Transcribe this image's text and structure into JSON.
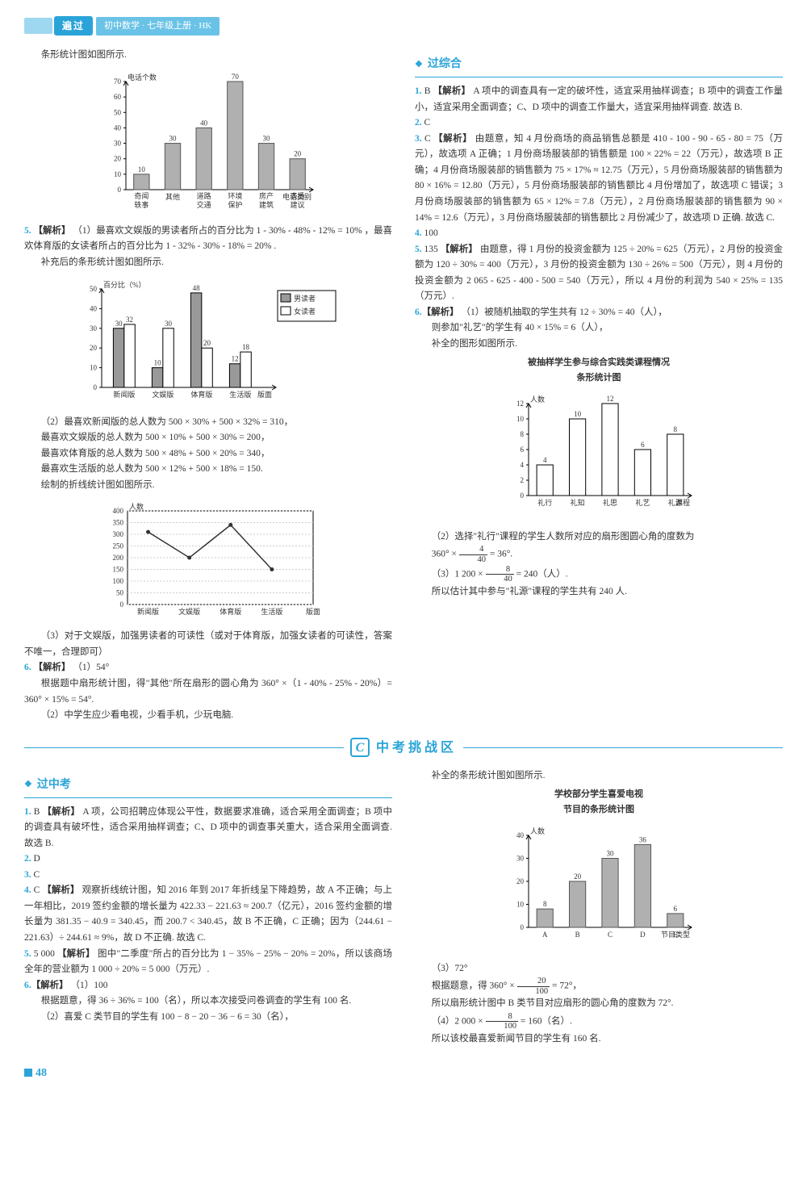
{
  "header": {
    "logo": "遍过",
    "sub": "初中数学 · 七年级上册 · HK"
  },
  "pagenum": "48",
  "zone_c_title": "中考挑战区",
  "sec_zonghe": "过综合",
  "sec_zhongkao": "过中考",
  "left_top_intro": "条形统计图如图所示.",
  "chart1": {
    "type": "bar",
    "ylabel": "电话个数",
    "xlabel": "电话类别",
    "categories": [
      "奇闻轶事",
      "其他",
      "道路交通",
      "环境保护",
      "房产建筑",
      "表扬建议"
    ],
    "values": [
      10,
      30,
      40,
      70,
      30,
      20
    ],
    "ylim": [
      0,
      70
    ],
    "ytick_step": 10,
    "bar_color": "#b0b0b0",
    "bar_border": "#555",
    "bg": "#ffffff",
    "axis_color": "#000"
  },
  "q5": {
    "num": "5.",
    "tag": "【解析】",
    "p1": "（1）最喜欢文娱版的男读者所占的百分比为 1 - 30% - 48% - 12% = 10% ，最喜欢体育版的女读者所占的百分比为 1 - 32% - 30% - 18% = 20% .",
    "p2": "补充后的条形统计图如图所示."
  },
  "chart2": {
    "type": "grouped-bar",
    "ylabel": "百分比（%）",
    "categories": [
      "新闻版",
      "文娱版",
      "体育版",
      "生活版",
      "版面"
    ],
    "labels_top": [
      [
        "30",
        "32"
      ],
      [
        "10",
        "30"
      ],
      [
        "48",
        "20"
      ],
      [
        "12",
        "18"
      ],
      [
        "",
        ""
      ]
    ],
    "series": [
      {
        "name": "男读者",
        "color": "#999999",
        "values": [
          30,
          10,
          48,
          12
        ]
      },
      {
        "name": "女读者",
        "color": "#ffffff",
        "values": [
          32,
          30,
          20,
          18
        ]
      }
    ],
    "ylim": [
      0,
      50
    ],
    "ytick_step": 10,
    "legend_bg": "#ffffff",
    "legend_border": "#000"
  },
  "q5_b": [
    "（2）最喜欢新闻版的总人数为 500 × 30% + 500 × 32% = 310，",
    "最喜欢文娱版的总人数为 500 × 10% + 500 × 30% = 200，",
    "最喜欢体育版的总人数为 500 × 48% + 500 × 20% = 340，",
    "最喜欢生活版的总人数为 500 × 12% + 500 × 18% = 150.",
    "绘制的折线统计图如图所示."
  ],
  "chart3": {
    "type": "line",
    "ylabel": "人数",
    "categories": [
      "新闻版",
      "文娱版",
      "体育版",
      "生活版",
      "版面"
    ],
    "values": [
      310,
      200,
      340,
      150
    ],
    "ylim": [
      0,
      400
    ],
    "ytick_step": 50,
    "line_color": "#333",
    "marker": "circle",
    "marker_color": "#333"
  },
  "q5_c": "（3）对于文娱版，加强男读者的可读性（或对于体育版，加强女读者的可读性，答案不唯一，合理即可）",
  "q6": {
    "num": "6.",
    "tag": "【解析】",
    "a": "（1）54°",
    "p1": "根据题中扇形统计图，得\"其他\"所在扇形的圆心角为 360° ×（1 - 40% - 25% - 20%）= 360° × 15% = 54°.",
    "p2": "（2）中学生应少看电视，少看手机，少玩电脑."
  },
  "right_top": [
    {
      "num": "1.",
      "ans": "B",
      "tag": "【解析】",
      "txt": "A 项中的调查具有一定的破坏性，适宜采用抽样调查；B 项中的调查工作量小，适宜采用全面调查；C、D 项中的调查工作量大，适宜采用抽样调查. 故选 B."
    },
    {
      "num": "2.",
      "ans": "C",
      "txt": ""
    },
    {
      "num": "3.",
      "ans": "C",
      "tag": "【解析】",
      "txt": "由题意，知 4 月份商场的商品销售总额是 410 - 100 - 90 - 65 - 80 = 75（万元），故选项 A 正确；1 月份商场服装部的销售额是 100 × 22% = 22（万元），故选项 B 正确；4 月份商场服装部的销售额为 75 × 17% ≈ 12.75（万元），5 月份商场服装部的销售额为 80 × 16% = 12.80（万元），5 月份商场服装部的销售额比 4 月份增加了，故选项 C 错误；3 月份商场服装部的销售额为 65 × 12% = 7.8（万元），2 月份商场服装部的销售额为 90 × 14% = 12.6（万元），3 月份商场服装部的销售额比 2 月份减少了，故选项 D 正确. 故选 C."
    },
    {
      "num": "4.",
      "ans": "100",
      "txt": ""
    },
    {
      "num": "5.",
      "ans": "135",
      "tag": "【解析】",
      "txt": "由题意，得 1 月份的投资金额为 125 ÷ 20% = 625（万元），2 月份的投资金额为 120 ÷ 30% = 400（万元），3 月份的投资金额为 130 ÷ 26% = 500（万元），则 4 月份的投资金额为 2 065 - 625 - 400 - 500 = 540（万元），所以 4 月份的利润为 540 × 25% = 135（万元）."
    },
    {
      "num": "6.",
      "ans": "",
      "tag": "【解析】",
      "txt": "（1）被随机抽取的学生共有 12 ÷ 30% = 40（人），"
    }
  ],
  "q6r_p2": "则参加\"礼艺\"的学生有 40 × 15% = 6（人），",
  "q6r_p3": "补全的图形如图所示.",
  "chart4": {
    "type": "bar",
    "title": "被抽样学生参与综合实践类课程情况\n条形统计图",
    "ylabel": "人数",
    "xlabel_suffix": "课程",
    "categories": [
      "礼行",
      "礼知",
      "礼思",
      "礼艺",
      "礼源"
    ],
    "values": [
      4,
      10,
      12,
      6,
      8
    ],
    "ylim": [
      0,
      12
    ],
    "ytick_step": 2,
    "bar_color": "#ffffff",
    "bar_border": "#000"
  },
  "q6r_p4_a": "（2）选择\"礼行\"课程的学生人数所对应的扇形图圆心角的度数为",
  "q6r_p4_b_pre": "360° × ",
  "q6r_frac1": {
    "num": "4",
    "den": "40"
  },
  "q6r_p4_b_post": " = 36°.",
  "q6r_p5_pre": "（3）1 200 × ",
  "q6r_frac2": {
    "num": "8",
    "den": "40"
  },
  "q6r_p5_post": " = 240（人）.",
  "q6r_p6": "所以估计其中参与\"礼源\"课程的学生共有 240 人.",
  "zk_left": [
    {
      "num": "1.",
      "ans": "B",
      "tag": "【解析】",
      "txt": "A 项，公司招聘应体现公平性，数据要求准确，适合采用全面调查；B 项中的调查具有破坏性，适合采用抽样调查；C、D 项中的调查事关重大，适合采用全面调查. 故选 B."
    },
    {
      "num": "2.",
      "ans": "D",
      "txt": ""
    },
    {
      "num": "3.",
      "ans": "C",
      "txt": ""
    },
    {
      "num": "4.",
      "ans": "C",
      "tag": "【解析】",
      "txt": "观察折线统计图，知 2016 年到 2017 年折线呈下降趋势，故 A 不正确；与上一年相比，2019 签约金额的增长量为 422.33 − 221.63 ≈ 200.7（亿元），2016 签约金额的增长量为 381.35 − 40.9 = 340.45，而 200.7 < 340.45，故 B 不正确，C 正确；因为（244.61 − 221.63）÷ 244.61 ≈ 9%，故 D 不正确. 故选 C."
    },
    {
      "num": "5.",
      "ans": "5 000",
      "tag": "【解析】",
      "txt": "图中\"二季度\"所占的百分比为 1 − 35% − 25% − 20% = 20%，所以该商场全年的营业额为 1 000 ÷ 20% = 5 000（万元）."
    },
    {
      "num": "6.",
      "ans": "",
      "tag": "【解析】",
      "txt": "（1）100"
    }
  ],
  "zk_left_extra1": "根据题意，得 36 ÷ 36% = 100（名），所以本次接受问卷调查的学生有 100 名.",
  "zk_left_extra2": "（2）喜爱 C 类节目的学生有 100 − 8 − 20 − 36 − 6 = 30（名），",
  "zk_right_intro": "补全的条形统计图如图所示.",
  "chart5": {
    "type": "bar",
    "title": "学校部分学生喜爱电视\n节目的条形统计图",
    "ylabel": "人数",
    "xlabel_suffix": "节目类型",
    "categories": [
      "A",
      "B",
      "C",
      "D",
      "E"
    ],
    "values": [
      8,
      20,
      30,
      36,
      6
    ],
    "ylim": [
      0,
      40
    ],
    "ytick_step": 10,
    "bar_color": "#b0b0b0",
    "bar_border": "#555"
  },
  "zk_r_p3": "（3）72°",
  "zk_r_p4_pre": "根据题意，得 360° × ",
  "zk_r_frac1": {
    "num": "20",
    "den": "100"
  },
  "zk_r_p4_post": " = 72°，",
  "zk_r_p5": "所以扇形统计图中 B 类节目对应扇形的圆心角的度数为 72°.",
  "zk_r_p6_pre": "（4）2 000 × ",
  "zk_r_frac2": {
    "num": "8",
    "den": "100"
  },
  "zk_r_p6_post": " = 160（名）.",
  "zk_r_p7": "所以该校最喜爱新闻节目的学生有 160 名."
}
